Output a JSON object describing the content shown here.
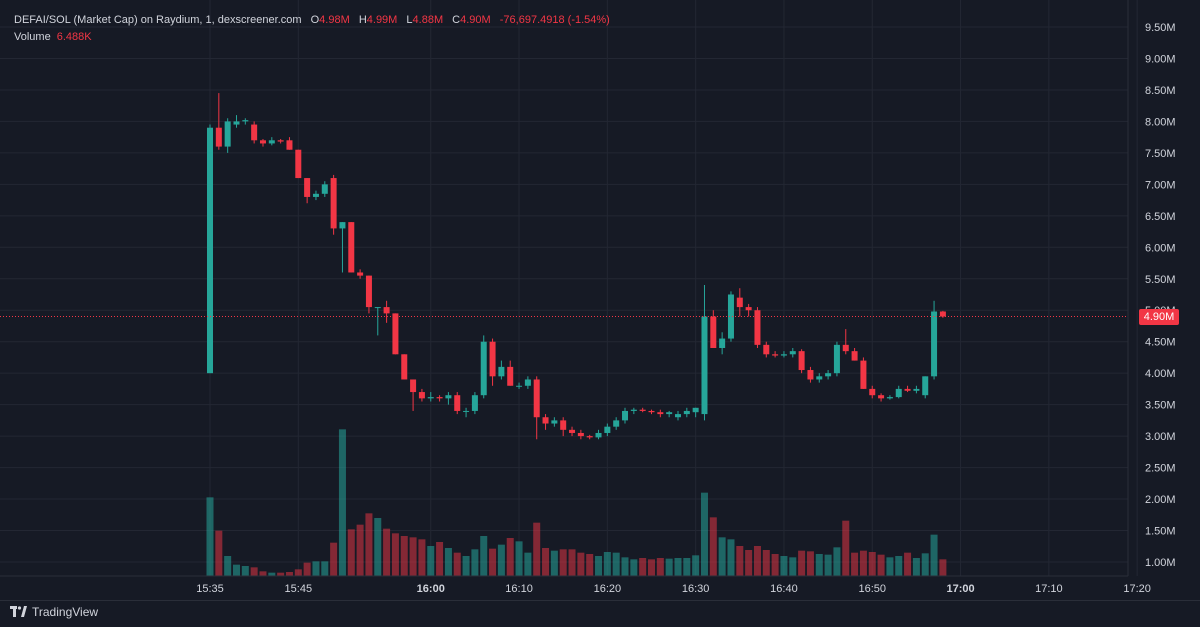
{
  "legend": {
    "title": "DEFAI/SOL (Market Cap) on Raydium, 1, dexscreener.com",
    "o_label": "O",
    "o_value": "4.98M",
    "h_label": "H",
    "h_value": "4.99M",
    "l_label": "L",
    "l_value": "4.88M",
    "c_label": "C",
    "c_value": "4.90M",
    "change": "-76,697.4918 (-1.54%)",
    "volume_label": "Volume",
    "volume_value": "6.488K"
  },
  "last_price_label": "4.90M",
  "hidden_tick_label": "5.00M",
  "brand": {
    "name": "TradingView",
    "icon": "tradingview-logo-icon"
  },
  "colors": {
    "up": "#26a69a",
    "down": "#f23645",
    "background": "#161a25",
    "grid": "#232733"
  },
  "chart_data": {
    "type": "candlestick",
    "y_ticks": [
      "9.50M",
      "9.00M",
      "8.50M",
      "8.00M",
      "7.50M",
      "7.00M",
      "6.50M",
      "6.00M",
      "5.50M",
      "5.00M",
      "4.50M",
      "4.00M",
      "3.50M",
      "3.00M",
      "2.50M",
      "2.00M",
      "1.50M",
      "1.00M"
    ],
    "x_ticks": [
      {
        "label": "15:35",
        "bold": false
      },
      {
        "label": "15:45",
        "bold": false
      },
      {
        "label": "16:00",
        "bold": true
      },
      {
        "label": "16:10",
        "bold": false
      },
      {
        "label": "16:20",
        "bold": false
      },
      {
        "label": "16:30",
        "bold": false
      },
      {
        "label": "16:40",
        "bold": false
      },
      {
        "label": "16:50",
        "bold": false
      },
      {
        "label": "17:00",
        "bold": true
      },
      {
        "label": "17:10",
        "bold": false
      },
      {
        "label": "17:20",
        "bold": false
      }
    ],
    "ylim": [
      0.85,
      9.6
    ],
    "last_price": 4.9,
    "candles": [
      {
        "o": 4.0,
        "h": 7.95,
        "l": 4.0,
        "c": 7.9,
        "v": 2.03
      },
      {
        "o": 7.9,
        "h": 8.45,
        "l": 7.55,
        "c": 7.6,
        "v": 1.53
      },
      {
        "o": 7.6,
        "h": 8.05,
        "l": 7.5,
        "c": 8.0,
        "v": 1.15
      },
      {
        "o": 7.95,
        "h": 8.1,
        "l": 7.9,
        "c": 8.0,
        "v": 1.02
      },
      {
        "o": 8.0,
        "h": 8.05,
        "l": 7.95,
        "c": 8.02,
        "v": 1.0
      },
      {
        "o": 7.95,
        "h": 8.0,
        "l": 7.65,
        "c": 7.7,
        "v": 0.98
      },
      {
        "o": 7.7,
        "h": 7.72,
        "l": 7.6,
        "c": 7.65,
        "v": 0.92
      },
      {
        "o": 7.65,
        "h": 7.75,
        "l": 7.62,
        "c": 7.7,
        "v": 0.9
      },
      {
        "o": 7.7,
        "h": 7.72,
        "l": 7.65,
        "c": 7.68,
        "v": 0.9
      },
      {
        "o": 7.7,
        "h": 7.75,
        "l": 7.55,
        "c": 7.55,
        "v": 0.91
      },
      {
        "o": 7.55,
        "h": 7.55,
        "l": 7.1,
        "c": 7.1,
        "v": 0.95
      },
      {
        "o": 7.1,
        "h": 7.1,
        "l": 6.7,
        "c": 6.8,
        "v": 1.05
      },
      {
        "o": 6.8,
        "h": 6.9,
        "l": 6.75,
        "c": 6.85,
        "v": 1.07
      },
      {
        "o": 6.85,
        "h": 7.05,
        "l": 6.8,
        "c": 7.0,
        "v": 1.07
      },
      {
        "o": 7.1,
        "h": 7.15,
        "l": 6.2,
        "c": 6.3,
        "v": 1.35
      },
      {
        "o": 6.3,
        "h": 6.4,
        "l": 5.6,
        "c": 6.4,
        "v": 3.05
      },
      {
        "o": 6.4,
        "h": 6.4,
        "l": 5.6,
        "c": 5.6,
        "v": 1.55
      },
      {
        "o": 5.6,
        "h": 5.65,
        "l": 5.5,
        "c": 5.55,
        "v": 1.62
      },
      {
        "o": 5.55,
        "h": 5.55,
        "l": 4.95,
        "c": 5.05,
        "v": 1.79
      },
      {
        "o": 5.05,
        "h": 5.05,
        "l": 4.6,
        "c": 5.05,
        "v": 1.72
      },
      {
        "o": 5.05,
        "h": 5.15,
        "l": 4.8,
        "c": 4.95,
        "v": 1.56
      },
      {
        "o": 4.95,
        "h": 4.95,
        "l": 4.3,
        "c": 4.3,
        "v": 1.49
      },
      {
        "o": 4.3,
        "h": 4.3,
        "l": 3.9,
        "c": 3.9,
        "v": 1.45
      },
      {
        "o": 3.9,
        "h": 3.9,
        "l": 3.4,
        "c": 3.7,
        "v": 1.43
      },
      {
        "o": 3.7,
        "h": 3.75,
        "l": 3.55,
        "c": 3.6,
        "v": 1.4
      },
      {
        "o": 3.6,
        "h": 3.7,
        "l": 3.55,
        "c": 3.62,
        "v": 1.3
      },
      {
        "o": 3.62,
        "h": 3.65,
        "l": 3.55,
        "c": 3.6,
        "v": 1.36
      },
      {
        "o": 3.6,
        "h": 3.7,
        "l": 3.5,
        "c": 3.65,
        "v": 1.27
      },
      {
        "o": 3.65,
        "h": 3.7,
        "l": 3.35,
        "c": 3.4,
        "v": 1.2
      },
      {
        "o": 3.4,
        "h": 3.45,
        "l": 3.3,
        "c": 3.4,
        "v": 1.15
      },
      {
        "o": 3.4,
        "h": 3.7,
        "l": 3.35,
        "c": 3.65,
        "v": 1.25
      },
      {
        "o": 3.65,
        "h": 4.6,
        "l": 3.6,
        "c": 4.5,
        "v": 1.45
      },
      {
        "o": 4.5,
        "h": 4.55,
        "l": 3.8,
        "c": 3.95,
        "v": 1.26
      },
      {
        "o": 3.95,
        "h": 4.2,
        "l": 3.9,
        "c": 4.1,
        "v": 1.32
      },
      {
        "o": 4.1,
        "h": 4.2,
        "l": 3.8,
        "c": 3.8,
        "v": 1.42
      },
      {
        "o": 3.8,
        "h": 3.85,
        "l": 3.75,
        "c": 3.8,
        "v": 1.37
      },
      {
        "o": 3.8,
        "h": 3.95,
        "l": 3.75,
        "c": 3.9,
        "v": 1.2
      },
      {
        "o": 3.9,
        "h": 3.95,
        "l": 2.95,
        "c": 3.3,
        "v": 1.65
      },
      {
        "o": 3.3,
        "h": 3.35,
        "l": 3.1,
        "c": 3.2,
        "v": 1.27
      },
      {
        "o": 3.2,
        "h": 3.3,
        "l": 3.15,
        "c": 3.25,
        "v": 1.23
      },
      {
        "o": 3.25,
        "h": 3.3,
        "l": 3.0,
        "c": 3.1,
        "v": 1.25
      },
      {
        "o": 3.1,
        "h": 3.15,
        "l": 3.0,
        "c": 3.05,
        "v": 1.25
      },
      {
        "o": 3.05,
        "h": 3.1,
        "l": 2.95,
        "c": 3.0,
        "v": 1.2
      },
      {
        "o": 3.0,
        "h": 3.02,
        "l": 2.95,
        "c": 2.98,
        "v": 1.18
      },
      {
        "o": 2.98,
        "h": 3.1,
        "l": 2.95,
        "c": 3.05,
        "v": 1.15
      },
      {
        "o": 3.05,
        "h": 3.2,
        "l": 3.0,
        "c": 3.15,
        "v": 1.21
      },
      {
        "o": 3.15,
        "h": 3.3,
        "l": 3.1,
        "c": 3.25,
        "v": 1.2
      },
      {
        "o": 3.25,
        "h": 3.45,
        "l": 3.2,
        "c": 3.4,
        "v": 1.13
      },
      {
        "o": 3.4,
        "h": 3.45,
        "l": 3.35,
        "c": 3.42,
        "v": 1.1
      },
      {
        "o": 3.42,
        "h": 3.45,
        "l": 3.38,
        "c": 3.4,
        "v": 1.12
      },
      {
        "o": 3.4,
        "h": 3.42,
        "l": 3.35,
        "c": 3.38,
        "v": 1.1
      },
      {
        "o": 3.38,
        "h": 3.42,
        "l": 3.3,
        "c": 3.35,
        "v": 1.12
      },
      {
        "o": 3.35,
        "h": 3.4,
        "l": 3.3,
        "c": 3.38,
        "v": 1.11
      },
      {
        "o": 3.3,
        "h": 3.4,
        "l": 3.25,
        "c": 3.35,
        "v": 1.12
      },
      {
        "o": 3.35,
        "h": 3.45,
        "l": 3.3,
        "c": 3.4,
        "v": 1.12
      },
      {
        "o": 3.38,
        "h": 3.45,
        "l": 3.3,
        "c": 3.45,
        "v": 1.16
      },
      {
        "o": 3.35,
        "h": 5.4,
        "l": 3.25,
        "c": 4.9,
        "v": 2.1
      },
      {
        "o": 4.9,
        "h": 5.0,
        "l": 4.4,
        "c": 4.4,
        "v": 1.73
      },
      {
        "o": 4.4,
        "h": 4.65,
        "l": 4.3,
        "c": 4.55,
        "v": 1.43
      },
      {
        "o": 4.55,
        "h": 5.3,
        "l": 4.5,
        "c": 5.25,
        "v": 1.4
      },
      {
        "o": 5.2,
        "h": 5.35,
        "l": 4.9,
        "c": 5.05,
        "v": 1.3
      },
      {
        "o": 5.05,
        "h": 5.1,
        "l": 4.9,
        "c": 5.0,
        "v": 1.24
      },
      {
        "o": 5.0,
        "h": 5.05,
        "l": 4.4,
        "c": 4.45,
        "v": 1.3
      },
      {
        "o": 4.45,
        "h": 4.5,
        "l": 4.25,
        "c": 4.3,
        "v": 1.24
      },
      {
        "o": 4.3,
        "h": 4.35,
        "l": 4.25,
        "c": 4.28,
        "v": 1.18
      },
      {
        "o": 4.28,
        "h": 4.35,
        "l": 4.25,
        "c": 4.3,
        "v": 1.15
      },
      {
        "o": 4.3,
        "h": 4.4,
        "l": 4.25,
        "c": 4.35,
        "v": 1.13
      },
      {
        "o": 4.35,
        "h": 4.38,
        "l": 4.0,
        "c": 4.05,
        "v": 1.23
      },
      {
        "o": 4.05,
        "h": 4.1,
        "l": 3.85,
        "c": 3.9,
        "v": 1.22
      },
      {
        "o": 3.9,
        "h": 4.0,
        "l": 3.85,
        "c": 3.95,
        "v": 1.18
      },
      {
        "o": 3.95,
        "h": 4.05,
        "l": 3.9,
        "c": 4.0,
        "v": 1.17
      },
      {
        "o": 4.0,
        "h": 4.5,
        "l": 3.95,
        "c": 4.45,
        "v": 1.28
      },
      {
        "o": 4.45,
        "h": 4.7,
        "l": 4.3,
        "c": 4.35,
        "v": 1.68
      },
      {
        "o": 4.35,
        "h": 4.4,
        "l": 4.2,
        "c": 4.2,
        "v": 1.2
      },
      {
        "o": 4.2,
        "h": 4.25,
        "l": 3.75,
        "c": 3.75,
        "v": 1.23
      },
      {
        "o": 3.75,
        "h": 3.8,
        "l": 3.6,
        "c": 3.65,
        "v": 1.21
      },
      {
        "o": 3.65,
        "h": 3.68,
        "l": 3.55,
        "c": 3.6,
        "v": 1.17
      },
      {
        "o": 3.6,
        "h": 3.65,
        "l": 3.58,
        "c": 3.62,
        "v": 1.13
      },
      {
        "o": 3.62,
        "h": 3.8,
        "l": 3.6,
        "c": 3.75,
        "v": 1.15
      },
      {
        "o": 3.75,
        "h": 3.8,
        "l": 3.7,
        "c": 3.72,
        "v": 1.2
      },
      {
        "o": 3.72,
        "h": 3.8,
        "l": 3.68,
        "c": 3.75,
        "v": 1.12
      },
      {
        "o": 3.65,
        "h": 3.95,
        "l": 3.6,
        "c": 3.95,
        "v": 1.19
      },
      {
        "o": 3.95,
        "h": 5.15,
        "l": 3.9,
        "c": 4.98,
        "v": 1.47
      },
      {
        "o": 4.98,
        "h": 4.99,
        "l": 4.88,
        "c": 4.9,
        "v": 1.1
      }
    ]
  }
}
